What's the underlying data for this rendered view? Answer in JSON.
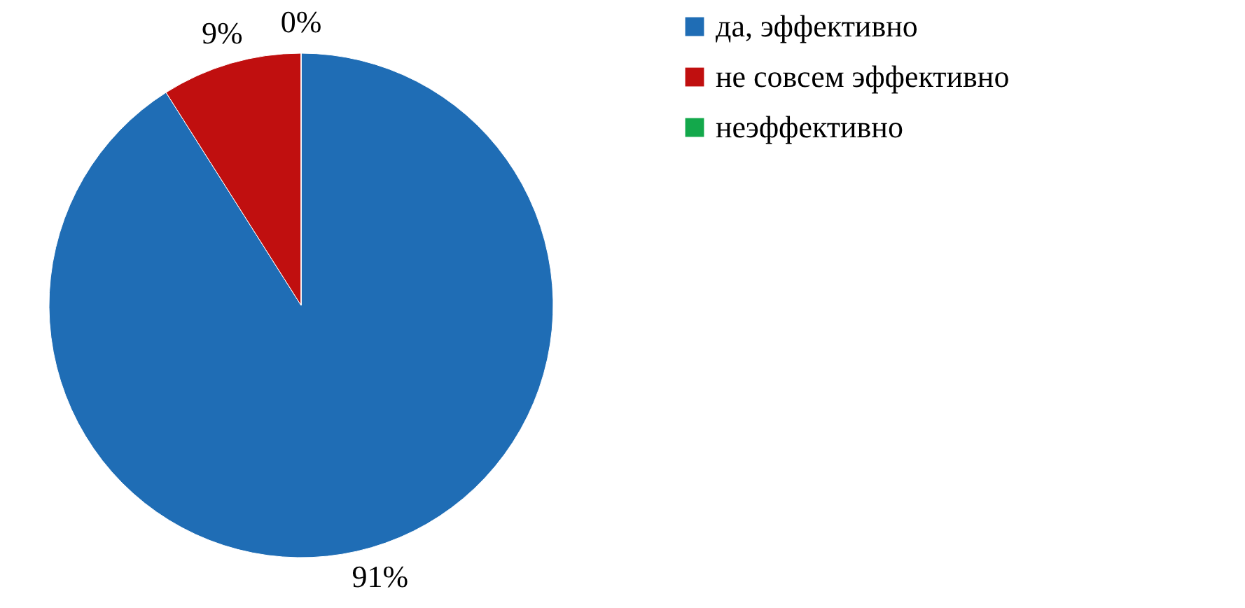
{
  "chart_data": {
    "type": "pie",
    "categories": [
      "да, эффективно",
      "не совсем эффективно",
      "неэффективно"
    ],
    "values": [
      91,
      9,
      0
    ],
    "colors": [
      "#1f6db5",
      "#c00f0f",
      "#13a84b"
    ],
    "value_labels": [
      "91%",
      "9%",
      "0%"
    ],
    "legend": "right"
  }
}
